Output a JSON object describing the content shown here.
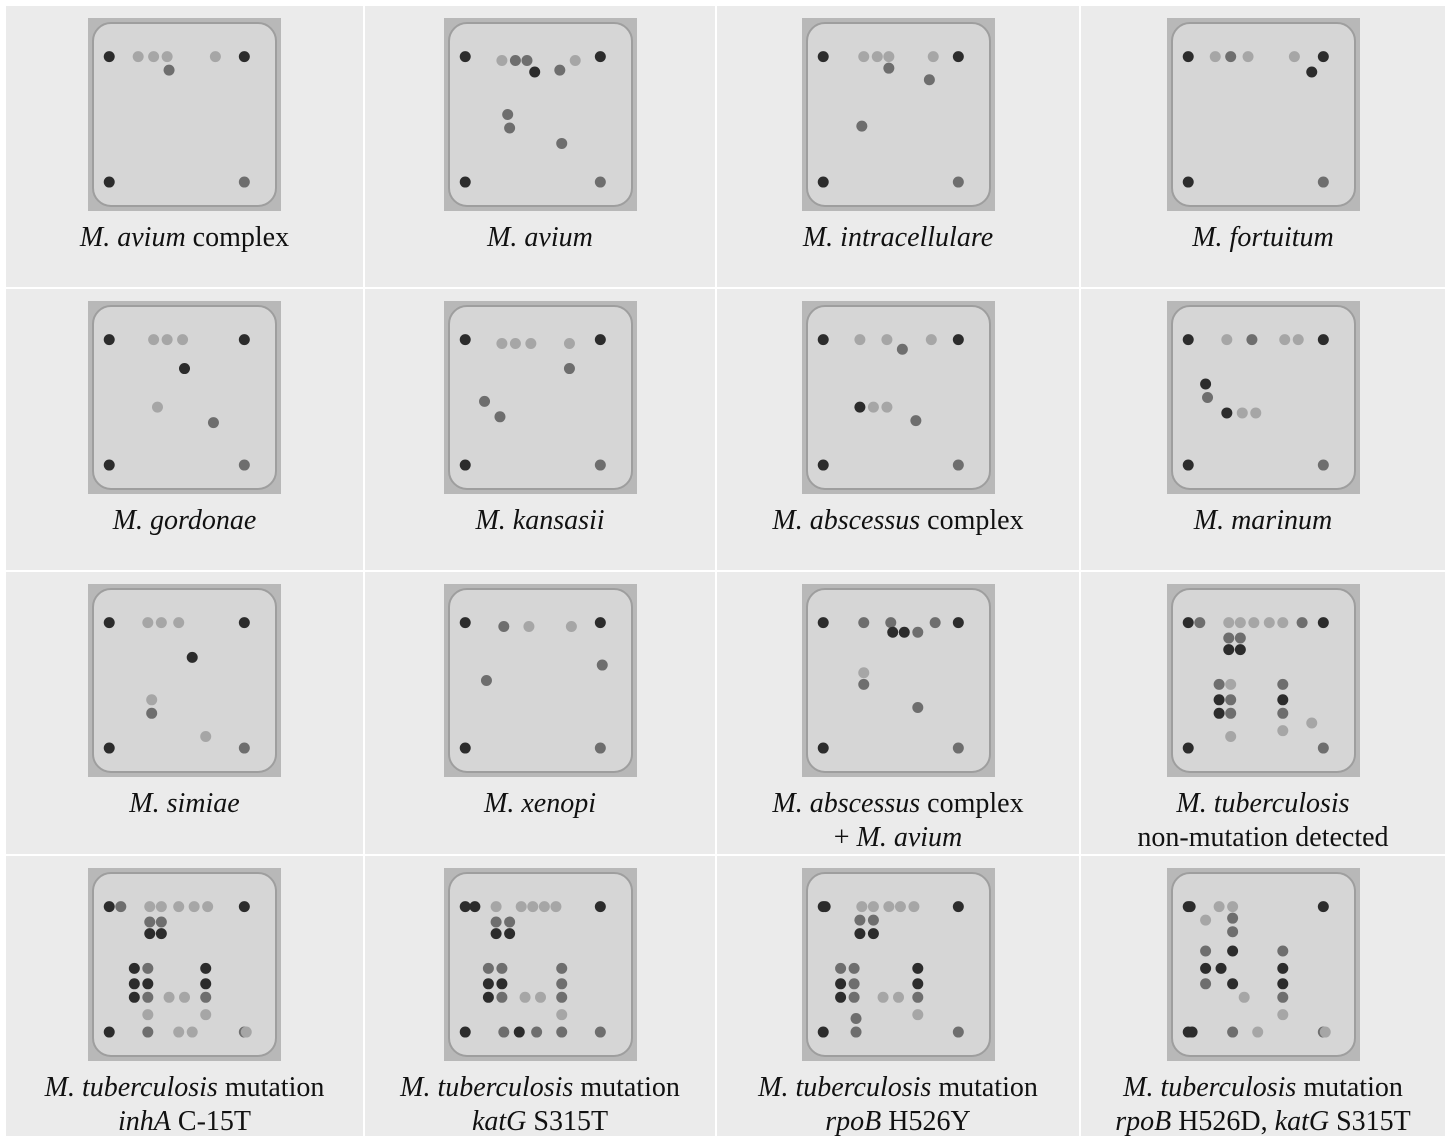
{
  "figure": {
    "cells": [
      {
        "caption": [
          [
            {
              "text": "M. avium",
              "italic": true
            },
            {
              "text": "complex",
              "italic": false
            }
          ]
        ]
      },
      {
        "caption": [
          [
            {
              "text": "M. avium",
              "italic": true
            }
          ]
        ]
      },
      {
        "caption": [
          [
            {
              "text": "M. intracellulare",
              "italic": true
            }
          ]
        ]
      },
      {
        "caption": [
          [
            {
              "text": "M. fortuitum",
              "italic": true
            }
          ]
        ]
      },
      {
        "caption": [
          [
            {
              "text": "M. gordonae",
              "italic": true
            }
          ]
        ]
      },
      {
        "caption": [
          [
            {
              "text": "M. kansasii",
              "italic": true
            }
          ]
        ]
      },
      {
        "caption": [
          [
            {
              "text": "M. abscessus",
              "italic": true
            },
            {
              "text": "complex",
              "italic": false
            }
          ]
        ]
      },
      {
        "caption": [
          [
            {
              "text": "M. marinum",
              "italic": true
            }
          ]
        ]
      },
      {
        "caption": [
          [
            {
              "text": "M. simiae",
              "italic": true
            }
          ]
        ]
      },
      {
        "caption": [
          [
            {
              "text": "M. xenopi",
              "italic": true
            }
          ]
        ]
      },
      {
        "caption": [
          [
            {
              "text": "M. abscessus",
              "italic": true
            },
            {
              "text": "complex",
              "italic": false
            }
          ],
          [
            {
              "text": "+",
              "italic": false
            },
            {
              "text": "M. avium",
              "italic": true
            }
          ]
        ]
      },
      {
        "caption": [
          [
            {
              "text": "M. tuberculosis",
              "italic": true
            }
          ],
          [
            {
              "text": "non-mutation detected",
              "italic": false
            }
          ]
        ]
      },
      {
        "caption": [
          [
            {
              "text": "M. tuberculosis",
              "italic": true
            },
            {
              "text": "mutation",
              "italic": false
            }
          ],
          [
            {
              "text": "inhA",
              "italic": true
            },
            {
              "text": "C-15T",
              "italic": false
            }
          ]
        ]
      },
      {
        "caption": [
          [
            {
              "text": "M. tuberculosis",
              "italic": true
            },
            {
              "text": "mutation",
              "italic": false
            }
          ],
          [
            {
              "text": "katG",
              "italic": true
            },
            {
              "text": "S315T",
              "italic": false
            }
          ]
        ]
      },
      {
        "caption": [
          [
            {
              "text": "M. tuberculosis",
              "italic": true
            },
            {
              "text": "mutation",
              "italic": false
            }
          ],
          [
            {
              "text": "rpoB",
              "italic": true
            },
            {
              "text": "H526Y",
              "italic": false
            }
          ]
        ]
      },
      {
        "caption": [
          [
            {
              "text": "M. tuberculosis",
              "italic": true
            },
            {
              "text": "mutation",
              "italic": false
            }
          ],
          [
            {
              "text": "rpoB",
              "italic": true
            },
            {
              "text": "H526D,",
              "italic": false
            },
            {
              "text": "katG",
              "italic": true
            },
            {
              "text": "S315T",
              "italic": false
            }
          ]
        ]
      }
    ]
  }
}
